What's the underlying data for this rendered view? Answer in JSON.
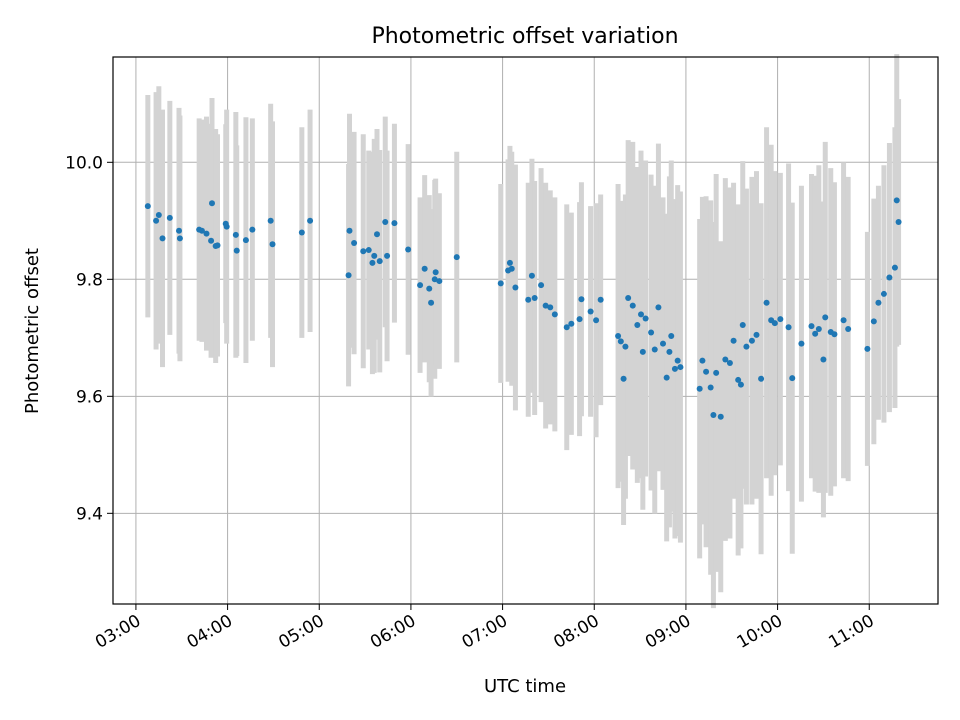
{
  "chart_data": {
    "type": "scatter",
    "title": "Photometric offset variation",
    "xlabel": "UTC time",
    "ylabel": "Photometric offset",
    "x_unit": "hours UTC",
    "xlim": [
      2.75,
      11.75
    ],
    "ylim": [
      9.245,
      10.18
    ],
    "xticks": [
      3,
      4,
      5,
      6,
      7,
      8,
      9,
      10,
      11
    ],
    "xtick_labels": [
      "03:00",
      "04:00",
      "05:00",
      "06:00",
      "07:00",
      "08:00",
      "09:00",
      "10:00",
      "11:00"
    ],
    "yticks": [
      9.4,
      9.6,
      9.8,
      10.0
    ],
    "ytick_labels": [
      "9.4",
      "9.6",
      "9.8",
      "10.0"
    ],
    "grid": true,
    "point_color": "#1f77b4",
    "errorbar_color": "#d3d3d3",
    "series": [
      {
        "x": [
          3.13,
          3.22,
          3.25,
          3.29,
          3.37,
          3.47,
          3.48,
          3.69,
          3.72,
          3.77,
          3.82,
          3.83,
          3.87,
          3.89,
          3.98,
          3.99,
          4.09,
          4.1,
          4.2,
          4.27,
          4.47,
          4.49,
          4.81,
          4.9,
          5.32,
          5.33,
          5.38,
          5.48,
          5.54,
          5.58,
          5.6,
          5.63,
          5.66,
          5.72,
          5.74,
          5.82,
          5.97,
          6.1,
          6.15,
          6.2,
          6.22,
          6.26,
          6.27,
          6.31,
          6.5,
          6.98,
          7.06,
          7.08,
          7.1,
          7.14,
          7.28,
          7.32,
          7.35,
          7.42,
          7.47,
          7.52,
          7.57,
          7.7,
          7.75,
          7.84,
          7.86,
          7.96,
          8.02,
          8.07,
          8.26,
          8.29,
          8.32,
          8.34,
          8.37,
          8.42,
          8.47,
          8.51,
          8.53,
          8.56,
          8.62,
          8.66,
          8.7,
          8.75,
          8.79,
          8.82,
          8.84,
          8.88,
          8.91,
          8.94,
          9.15,
          9.18,
          9.22,
          9.27,
          9.3,
          9.33,
          9.38,
          9.43,
          9.48,
          9.52,
          9.57,
          9.6,
          9.62,
          9.66,
          9.72,
          9.77,
          9.82,
          9.88,
          9.93,
          9.97,
          10.03,
          10.12,
          10.16,
          10.26,
          10.37,
          10.41,
          10.45,
          10.5,
          10.52,
          10.58,
          10.62,
          10.72,
          10.77,
          10.98,
          11.05,
          11.1,
          11.16,
          11.22,
          11.28,
          11.3,
          11.32
        ],
        "y": [
          9.925,
          9.9,
          9.91,
          9.87,
          9.905,
          9.883,
          9.87,
          9.885,
          9.883,
          9.878,
          9.866,
          9.93,
          9.857,
          9.858,
          9.895,
          9.89,
          9.876,
          9.849,
          9.867,
          9.885,
          9.9,
          9.86,
          9.88,
          9.9,
          9.807,
          9.883,
          9.862,
          9.848,
          9.85,
          9.828,
          9.84,
          9.877,
          9.831,
          9.898,
          9.84,
          9.896,
          9.851,
          9.79,
          9.818,
          9.784,
          9.76,
          9.8,
          9.812,
          9.797,
          9.838,
          9.793,
          9.815,
          9.828,
          9.818,
          9.786,
          9.765,
          9.806,
          9.768,
          9.79,
          9.755,
          9.752,
          9.74,
          9.718,
          9.724,
          9.732,
          9.766,
          9.745,
          9.73,
          9.765,
          9.703,
          9.694,
          9.63,
          9.685,
          9.768,
          9.755,
          9.722,
          9.74,
          9.676,
          9.733,
          9.709,
          9.68,
          9.752,
          9.69,
          9.632,
          9.676,
          9.703,
          9.647,
          9.661,
          9.65,
          9.613,
          9.661,
          9.642,
          9.615,
          9.568,
          9.64,
          9.565,
          9.663,
          9.657,
          9.695,
          9.628,
          9.62,
          9.722,
          9.685,
          9.695,
          9.705,
          9.63,
          9.76,
          9.73,
          9.725,
          9.732,
          9.718,
          9.631,
          9.69,
          9.72,
          9.707,
          9.715,
          9.663,
          9.735,
          9.71,
          9.706,
          9.73,
          9.715,
          9.681,
          9.728,
          9.76,
          9.775,
          9.803,
          9.82,
          9.935,
          9.898
        ],
        "err": [
          0.19,
          0.22,
          0.22,
          0.22,
          0.2,
          0.21,
          0.21,
          0.19,
          0.19,
          0.2,
          0.2,
          0.18,
          0.2,
          0.19,
          0.17,
          0.2,
          0.21,
          0.18,
          0.21,
          0.19,
          0.2,
          0.21,
          0.18,
          0.19,
          0.19,
          0.2,
          0.19,
          0.2,
          0.17,
          0.19,
          0.2,
          0.18,
          0.19,
          0.18,
          0.18,
          0.17,
          0.18,
          0.15,
          0.16,
          0.16,
          0.16,
          0.17,
          0.16,
          0.15,
          0.18,
          0.17,
          0.19,
          0.2,
          0.2,
          0.21,
          0.2,
          0.2,
          0.2,
          0.2,
          0.21,
          0.2,
          0.2,
          0.21,
          0.19,
          0.2,
          0.2,
          0.18,
          0.2,
          0.18,
          0.26,
          0.24,
          0.25,
          0.26,
          0.27,
          0.28,
          0.27,
          0.28,
          0.27,
          0.27,
          0.27,
          0.28,
          0.28,
          0.25,
          0.28,
          0.3,
          0.3,
          0.29,
          0.3,
          0.3,
          0.29,
          0.28,
          0.3,
          0.32,
          0.33,
          0.34,
          0.3,
          0.31,
          0.3,
          0.27,
          0.3,
          0.28,
          0.28,
          0.27,
          0.28,
          0.28,
          0.3,
          0.3,
          0.3,
          0.26,
          0.25,
          0.28,
          0.3,
          0.27,
          0.26,
          0.27,
          0.28,
          0.27,
          0.3,
          0.28,
          0.26,
          0.27,
          0.26,
          0.2,
          0.21,
          0.2,
          0.22,
          0.23,
          0.24,
          0.25,
          0.21
        ]
      }
    ]
  }
}
